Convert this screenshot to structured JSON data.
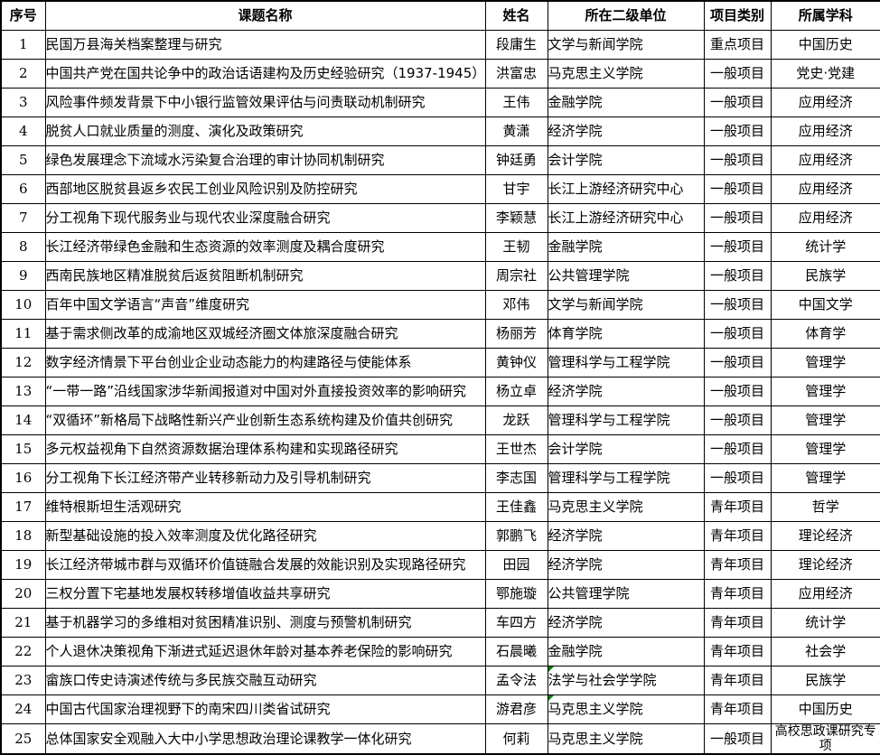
{
  "colors": {
    "border": "#000000",
    "cell_flag": "#008000",
    "background": "#ffffff"
  },
  "table": {
    "columns": [
      "序号",
      "课题名称",
      "姓名",
      "所在二级单位",
      "项目类别",
      "所属学科"
    ],
    "rows": [
      {
        "num": "1",
        "title": "民国万县海关档案整理与研究",
        "name": "段庸生",
        "unit": "文学与新闻学院",
        "category": "重点项目",
        "discipline": "中国历史"
      },
      {
        "num": "2",
        "title": "中国共产党在国共论争中的政治话语建构及历史经验研究（1937-1945）",
        "name": "洪富忠",
        "unit": "马克思主义学院",
        "category": "一般项目",
        "discipline": "党史·党建"
      },
      {
        "num": "3",
        "title": "风险事件频发背景下中小银行监管效果评估与问责联动机制研究",
        "name": "王伟",
        "unit": "金融学院",
        "category": "一般项目",
        "discipline": "应用经济"
      },
      {
        "num": "4",
        "title": "脱贫人口就业质量的测度、演化及政策研究",
        "name": "黄潇",
        "unit": "经济学院",
        "category": "一般项目",
        "discipline": "应用经济"
      },
      {
        "num": "5",
        "title": "绿色发展理念下流域水污染复合治理的审计协同机制研究",
        "name": "钟廷勇",
        "unit": "会计学院",
        "category": "一般项目",
        "discipline": "应用经济"
      },
      {
        "num": "6",
        "title": "西部地区脱贫县返乡农民工创业风险识别及防控研究",
        "name": "甘宇",
        "unit": "长江上游经济研究中心",
        "category": "一般项目",
        "discipline": "应用经济"
      },
      {
        "num": "7",
        "title": "分工视角下现代服务业与现代农业深度融合研究",
        "name": "李颖慧",
        "unit": "长江上游经济研究中心",
        "category": "一般项目",
        "discipline": "应用经济"
      },
      {
        "num": "8",
        "title": "长江经济带绿色金融和生态资源的效率测度及耦合度研究",
        "name": "王韧",
        "unit": "金融学院",
        "category": "一般项目",
        "discipline": "统计学"
      },
      {
        "num": "9",
        "title": "西南民族地区精准脱贫后返贫阻断机制研究",
        "name": "周宗社",
        "unit": "公共管理学院",
        "category": "一般项目",
        "discipline": "民族学"
      },
      {
        "num": "10",
        "title": "百年中国文学语言“声音”维度研究",
        "name": "邓伟",
        "unit": "文学与新闻学院",
        "category": "一般项目",
        "discipline": "中国文学"
      },
      {
        "num": "11",
        "title": "基于需求侧改革的成渝地区双城经济圈文体旅深度融合研究",
        "name": "杨丽芳",
        "unit": "体育学院",
        "category": "一般项目",
        "discipline": "体育学"
      },
      {
        "num": "12",
        "title": "数字经济情景下平台创业企业动态能力的构建路径与使能体系",
        "name": "黄钟仪",
        "unit": "管理科学与工程学院",
        "category": "一般项目",
        "discipline": "管理学"
      },
      {
        "num": "13",
        "title": "“一带一路”沿线国家涉华新闻报道对中国对外直接投资效率的影响研究",
        "name": "杨立卓",
        "unit": "经济学院",
        "category": "一般项目",
        "discipline": "管理学"
      },
      {
        "num": "14",
        "title": "“双循环”新格局下战略性新兴产业创新生态系统构建及价值共创研究",
        "name": "龙跃",
        "unit": "管理科学与工程学院",
        "category": "一般项目",
        "discipline": "管理学"
      },
      {
        "num": "15",
        "title": "多元权益视角下自然资源数据治理体系构建和实现路径研究",
        "name": "王世杰",
        "unit": "会计学院",
        "category": "一般项目",
        "discipline": "管理学"
      },
      {
        "num": "16",
        "title": "分工视角下长江经济带产业转移新动力及引导机制研究",
        "name": "李志国",
        "unit": "管理科学与工程学院",
        "category": "一般项目",
        "discipline": "管理学"
      },
      {
        "num": "17",
        "title": "维特根斯坦生活观研究",
        "name": "王佳鑫",
        "unit": "马克思主义学院",
        "category": "青年项目",
        "discipline": "哲学"
      },
      {
        "num": "18",
        "title": "新型基础设施的投入效率测度及优化路径研究",
        "name": "郭鹏飞",
        "unit": "经济学院",
        "category": "青年项目",
        "discipline": "理论经济"
      },
      {
        "num": "19",
        "title": "长江经济带城市群与双循环价值链融合发展的效能识别及实现路径研究",
        "name": "田园",
        "unit": "经济学院",
        "category": "青年项目",
        "discipline": "理论经济"
      },
      {
        "num": "20",
        "title": "三权分置下宅基地发展权转移增值收益共享研究",
        "name": "鄂施璇",
        "unit": "公共管理学院",
        "category": "青年项目",
        "discipline": "应用经济"
      },
      {
        "num": "21",
        "title": "基于机器学习的多维相对贫困精准识别、测度与预警机制研究",
        "name": "车四方",
        "unit": "经济学院",
        "category": "青年项目",
        "discipline": "统计学"
      },
      {
        "num": "22",
        "title": "个人退休决策视角下渐进式延迟退休年龄对基本养老保险的影响研究",
        "name": "石晨曦",
        "unit": "金融学院",
        "category": "青年项目",
        "discipline": "社会学"
      },
      {
        "num": "23",
        "title": "畲族口传史诗演述传统与多民族交融互动研究",
        "name": "孟令法",
        "unit": "法学与社会学学院",
        "category": "青年项目",
        "discipline": "民族学",
        "unit_flag": true
      },
      {
        "num": "24",
        "title": "中国古代国家治理视野下的南宋四川类省试研究",
        "name": "游君彦",
        "unit": "马克思主义学院",
        "category": "青年项目",
        "discipline": "中国历史",
        "unit_flag": true
      },
      {
        "num": "25",
        "title": "总体国家安全观融入大中小学思想政治理论课教学一体化研究",
        "name": "何莉",
        "unit": "马克思主义学院",
        "category": "一般项目",
        "discipline": "高校思政课研究专项",
        "discipline_wrap": true
      }
    ]
  }
}
